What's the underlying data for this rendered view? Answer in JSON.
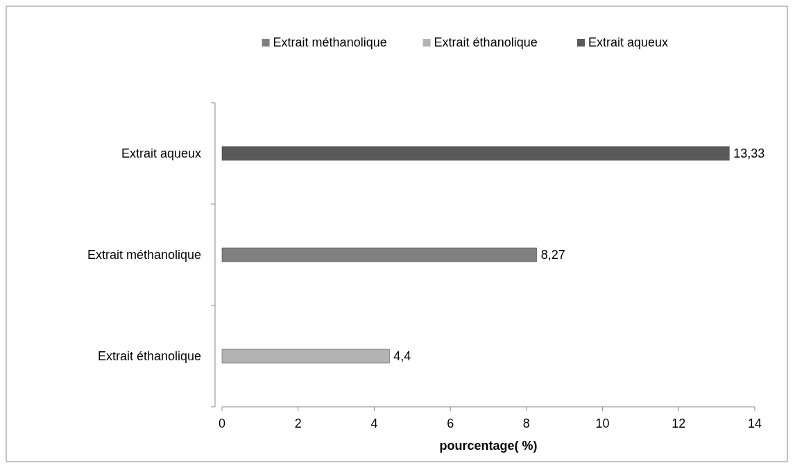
{
  "chart_data": {
    "type": "bar",
    "orientation": "horizontal",
    "categories": [
      "Extrait aqueux",
      "Extrait méthanolique",
      "Extrait éthanolique"
    ],
    "series": [
      {
        "name": "Extrait méthanolique",
        "color": "#808080",
        "values": [
          null,
          8.27,
          null
        ],
        "value_labels": [
          null,
          "8,27",
          null
        ]
      },
      {
        "name": "Extrait éthanolique",
        "color": "#b3b3b3",
        "values": [
          null,
          null,
          4.4
        ],
        "value_labels": [
          null,
          null,
          "4,4"
        ]
      },
      {
        "name": "Extrait aqueux",
        "color": "#595959",
        "values": [
          13.33,
          null,
          null
        ],
        "value_labels": [
          "13,33",
          null,
          null
        ]
      }
    ],
    "xlim": [
      0,
      14
    ],
    "xticks": [
      0,
      2,
      4,
      6,
      8,
      10,
      12,
      14
    ],
    "xlabel": "pourcentage( %)",
    "legend": "top",
    "grid": false
  }
}
